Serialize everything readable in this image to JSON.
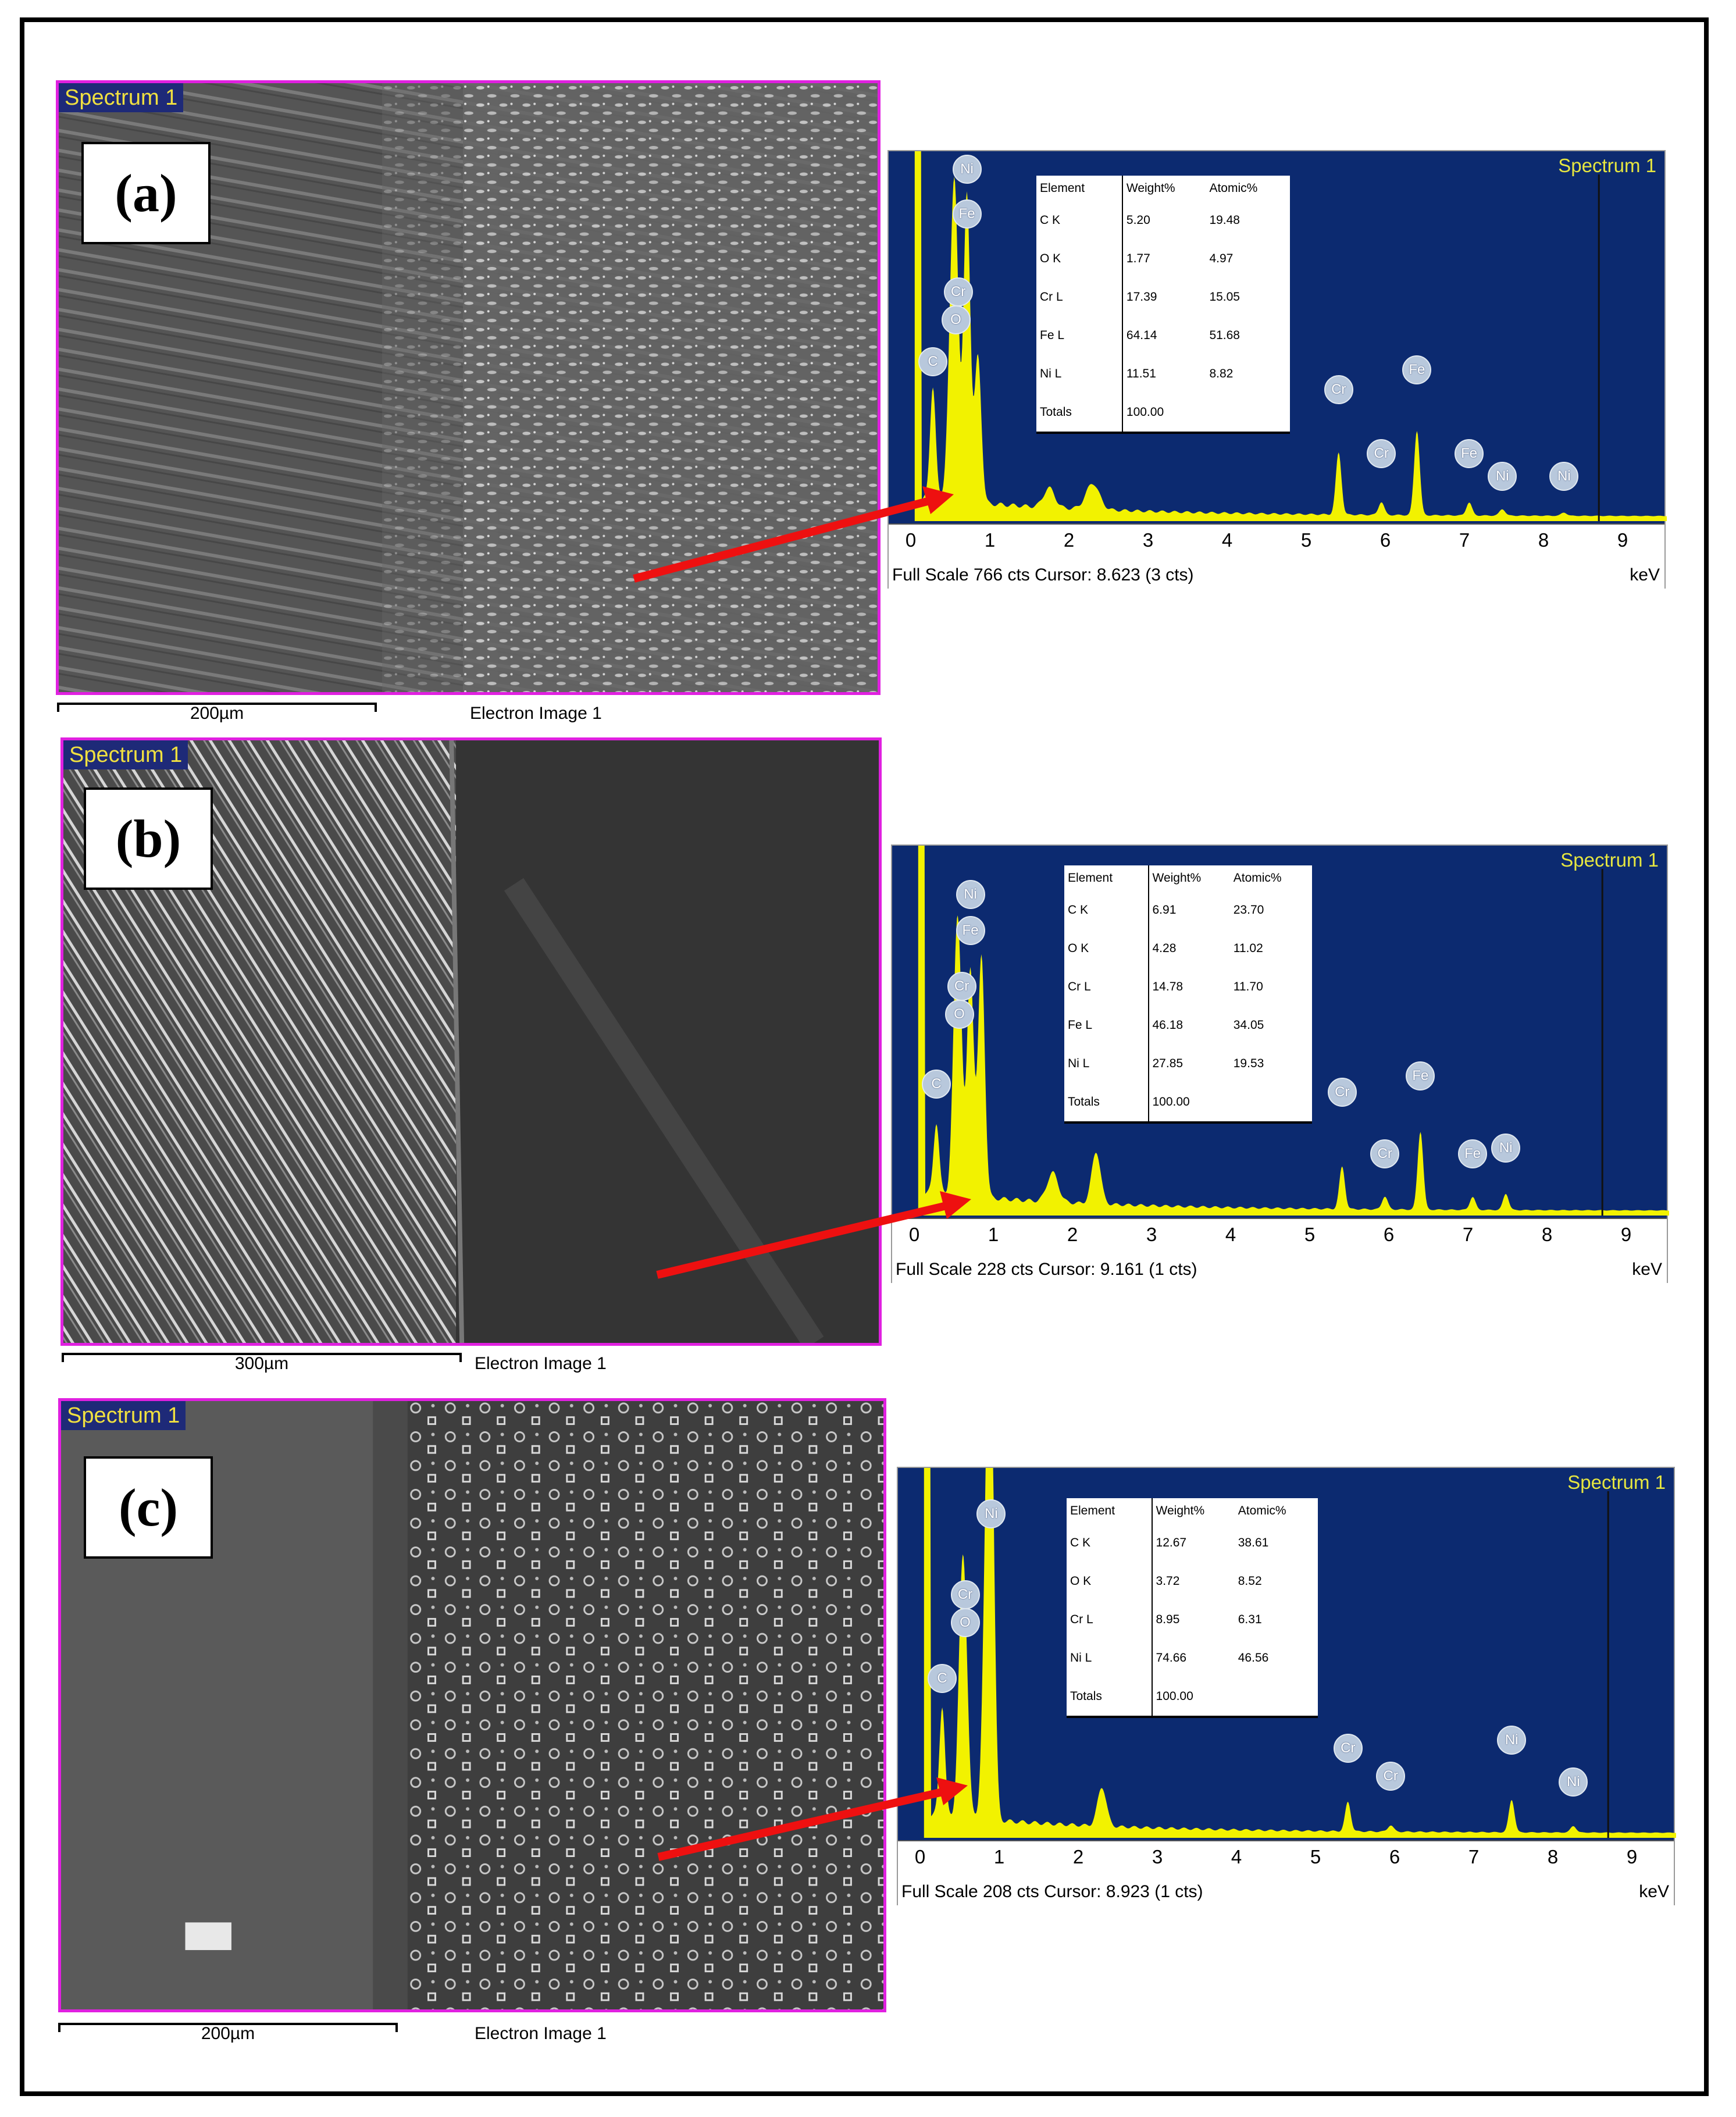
{
  "panels": [
    {
      "letter": "(a)",
      "spectrum_tag": "Spectrum 1",
      "scale_label": "200µm",
      "image_caption": "Electron Image 1",
      "eds": {
        "title": "Spectrum 1",
        "footer": "Full Scale 766 cts Cursor: 8.623  (3 cts)",
        "unit": "keV",
        "ticks": [
          "0",
          "1",
          "2",
          "3",
          "4",
          "5",
          "6",
          "7",
          "8",
          "9"
        ],
        "table": {
          "header": [
            "Element",
            "Weight%",
            "Atomic%"
          ],
          "rows": [
            [
              "C K",
              "5.20",
              "19.48"
            ],
            [
              "O K",
              "1.77",
              "4.97"
            ],
            [
              "Cr L",
              "17.39",
              "15.05"
            ],
            [
              "Fe L",
              "64.14",
              "51.68"
            ],
            [
              "Ni L",
              "11.51",
              "8.82"
            ],
            [
              "Totals",
              "100.00",
              ""
            ]
          ]
        },
        "peaks": [
          "C",
          "O",
          "Cr",
          "Fe",
          "Ni",
          "Cr",
          "Cr",
          "Fe",
          "Fe",
          "Ni",
          "Ni"
        ]
      }
    },
    {
      "letter": "(b)",
      "spectrum_tag": "Spectrum 1",
      "scale_label": "300µm",
      "image_caption": "Electron Image 1",
      "eds": {
        "title": "Spectrum 1",
        "footer": "Full Scale 228 cts Cursor: 9.161  (1 cts)",
        "unit": "keV",
        "ticks": [
          "0",
          "1",
          "2",
          "3",
          "4",
          "5",
          "6",
          "7",
          "8",
          "9"
        ],
        "table": {
          "header": [
            "Element",
            "Weight%",
            "Atomic%"
          ],
          "rows": [
            [
              "C K",
              "6.91",
              "23.70"
            ],
            [
              "O K",
              "4.28",
              "11.02"
            ],
            [
              "Cr L",
              "14.78",
              "11.70"
            ],
            [
              "Fe L",
              "46.18",
              "34.05"
            ],
            [
              "Ni L",
              "27.85",
              "19.53"
            ],
            [
              "Totals",
              "100.00",
              ""
            ]
          ]
        },
        "peaks": [
          "C",
          "O",
          "Cr",
          "Fe",
          "Ni",
          "Cr",
          "Cr",
          "Fe",
          "Fe",
          "Ni"
        ]
      }
    },
    {
      "letter": "(c)",
      "spectrum_tag": "Spectrum 1",
      "scale_label": "200µm",
      "image_caption": "Electron Image 1",
      "eds": {
        "title": "Spectrum 1",
        "footer": "Full Scale 208 cts Cursor: 8.923  (1 cts)",
        "unit": "keV",
        "ticks": [
          "0",
          "1",
          "2",
          "3",
          "4",
          "5",
          "6",
          "7",
          "8",
          "9"
        ],
        "table": {
          "header": [
            "Element",
            "Weight%",
            "Atomic%"
          ],
          "rows": [
            [
              "C K",
              "12.67",
              "38.61"
            ],
            [
              "O K",
              "3.72",
              "8.52"
            ],
            [
              "Cr L",
              "8.95",
              "6.31"
            ],
            [
              "Ni L",
              "74.66",
              "46.56"
            ],
            [
              "Totals",
              "100.00",
              ""
            ]
          ]
        },
        "peaks": [
          "C",
          "O",
          "Cr",
          "Ni",
          "Cr",
          "Cr",
          "Ni",
          "Ni"
        ]
      }
    }
  ],
  "colors": {
    "frame_border": "#e020e0",
    "plot_background": "#0c2a70",
    "spectrum_fill": "#f2f200",
    "title_text": "#e6e640",
    "arrow": "#ee1010"
  }
}
